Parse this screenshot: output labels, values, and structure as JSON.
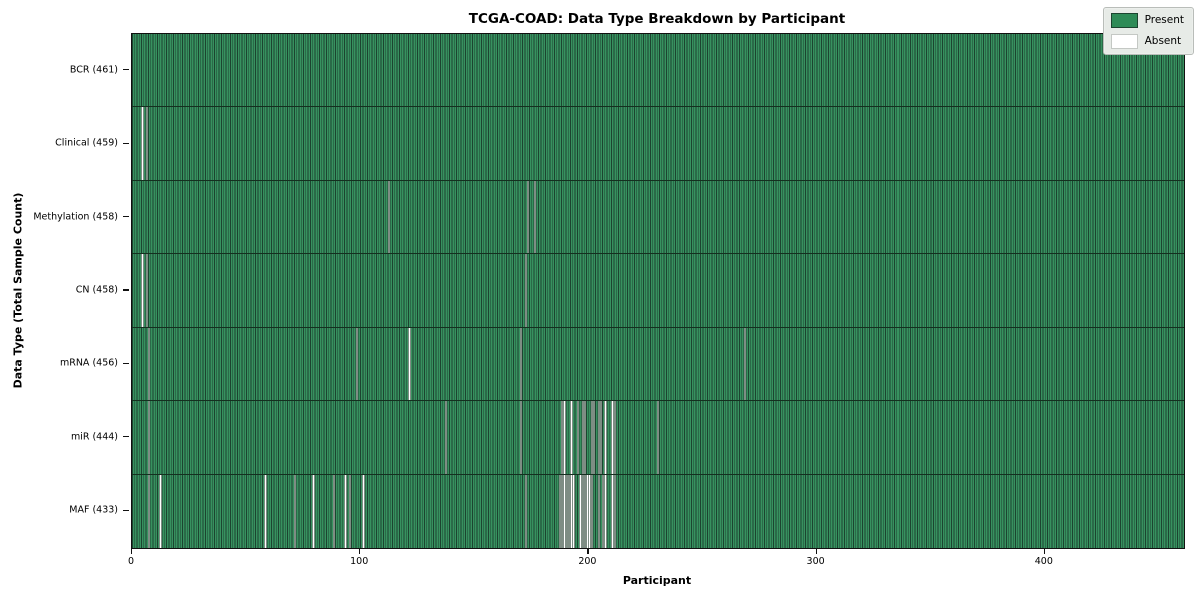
{
  "title": "TCGA-COAD: Data Type Breakdown by Participant",
  "xlabel": "Participant",
  "ylabel": "Data Type (Total Sample Count)",
  "legend": {
    "present_label": "Present",
    "absent_label": "Absent"
  },
  "colors": {
    "present": "#2E8B57",
    "present_edge": "#1c4430",
    "absent": "#ffffff",
    "legend_bg": "#e7ebe7"
  },
  "chart_data": {
    "type": "heatmap",
    "title": "TCGA-COAD: Data Type Breakdown by Participant",
    "xlabel": "Participant",
    "ylabel": "Data Type (Total Sample Count)",
    "x_range": [
      0,
      461
    ],
    "x_ticks": [
      0,
      100,
      200,
      300,
      400
    ],
    "total_participants": 461,
    "legend_entries": [
      "Present",
      "Absent"
    ],
    "legend_position": "upper right",
    "grid": false,
    "rows": [
      {
        "label": "BCR (461)",
        "data_type": "BCR",
        "total": 461,
        "absent_participants": []
      },
      {
        "label": "Clinical (459)",
        "data_type": "Clinical",
        "total": 459,
        "absent_participants": [
          4,
          6
        ]
      },
      {
        "label": "Methylation (458)",
        "data_type": "Methylation",
        "total": 458,
        "absent_participants": [
          112,
          173,
          176
        ]
      },
      {
        "label": "CN (458)",
        "data_type": "CN",
        "total": 458,
        "absent_participants": [
          4,
          6,
          172
        ]
      },
      {
        "label": "mRNA (456)",
        "data_type": "mRNA",
        "total": 456,
        "absent_participants": [
          7,
          98,
          121,
          170,
          268
        ]
      },
      {
        "label": "miR (444)",
        "data_type": "miR",
        "total": 444,
        "absent_participants": [
          7,
          137,
          170,
          188,
          189,
          192,
          195,
          197,
          198,
          201,
          202,
          204,
          205,
          207,
          210,
          211,
          230
        ]
      },
      {
        "label": "MAF (433)",
        "data_type": "MAF",
        "total": 433,
        "absent_participants": [
          7,
          12,
          58,
          71,
          79,
          88,
          93,
          95,
          101,
          172,
          187,
          188,
          189,
          190,
          191,
          192,
          193,
          196,
          197,
          198,
          199,
          200,
          201,
          204,
          206,
          207,
          210,
          211
        ]
      }
    ]
  }
}
